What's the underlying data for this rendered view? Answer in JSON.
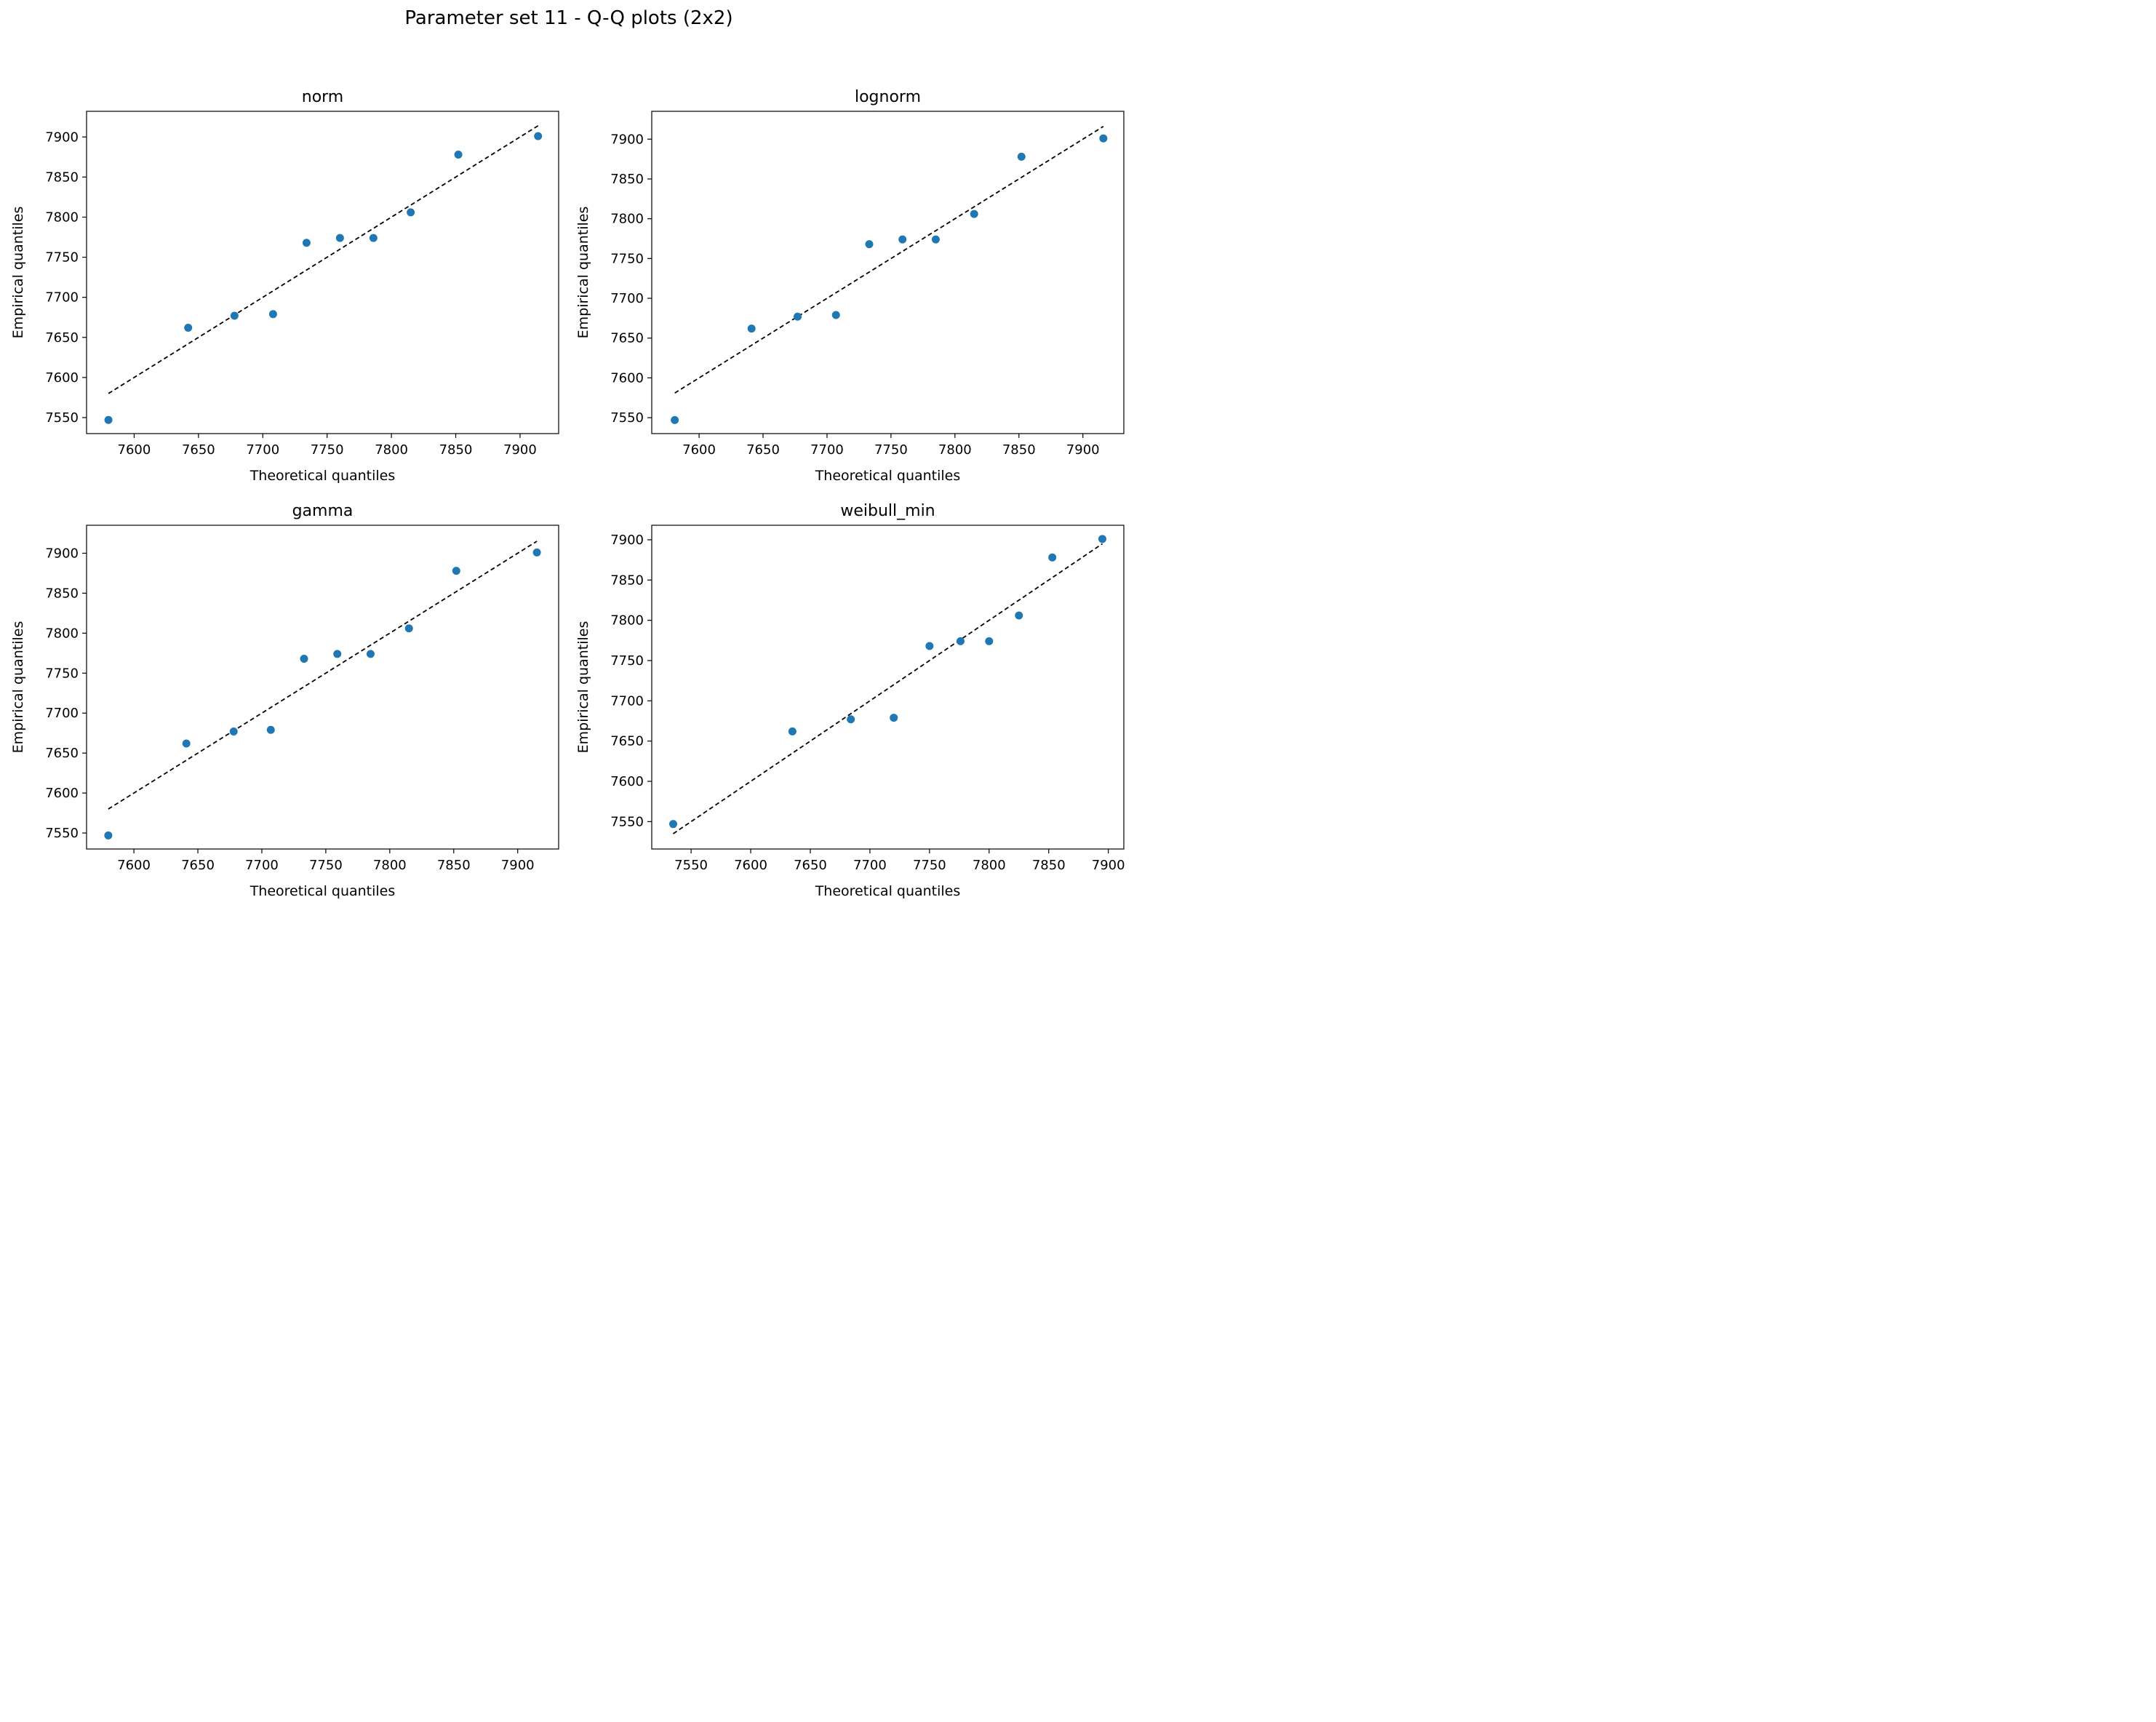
{
  "suptitle": "Parameter set 11 - Q-Q plots (2x2)",
  "chart_data": [
    {
      "type": "scatter",
      "title": "norm",
      "xlabel": "Theoretical quantiles",
      "ylabel": "Empirical quantiles",
      "xlim": [
        7563,
        7930
      ],
      "ylim": [
        7530,
        7932
      ],
      "xticks": [
        7600,
        7650,
        7700,
        7750,
        7800,
        7850,
        7900
      ],
      "yticks": [
        7550,
        7600,
        7650,
        7700,
        7750,
        7800,
        7850,
        7900
      ],
      "x": [
        7580,
        7642,
        7678,
        7708,
        7734,
        7760,
        7786,
        7815,
        7852,
        7914
      ],
      "y": [
        7547,
        7662,
        7677,
        7679,
        7768,
        7774,
        7774,
        7806,
        7878,
        7901
      ],
      "reference_line": {
        "x": [
          7580,
          7914
        ],
        "y": [
          7580,
          7914
        ]
      },
      "marker_color": "#1f77b4",
      "line_color": "#000000",
      "grid": false
    },
    {
      "type": "scatter",
      "title": "lognorm",
      "xlabel": "Theoretical quantiles",
      "ylabel": "Empirical quantiles",
      "xlim": [
        7563,
        7932
      ],
      "ylim": [
        7530,
        7935
      ],
      "xticks": [
        7600,
        7650,
        7700,
        7750,
        7800,
        7850,
        7900
      ],
      "yticks": [
        7550,
        7600,
        7650,
        7700,
        7750,
        7800,
        7850,
        7900
      ],
      "x": [
        7581,
        7641,
        7677,
        7707,
        7733,
        7759,
        7785,
        7815,
        7852,
        7916
      ],
      "y": [
        7547,
        7662,
        7677,
        7679,
        7768,
        7774,
        7774,
        7806,
        7878,
        7901
      ],
      "reference_line": {
        "x": [
          7581,
          7916
        ],
        "y": [
          7581,
          7916
        ]
      },
      "marker_color": "#1f77b4",
      "line_color": "#000000",
      "grid": false
    },
    {
      "type": "scatter",
      "title": "gamma",
      "xlabel": "Theoretical quantiles",
      "ylabel": "Empirical quantiles",
      "xlim": [
        7563,
        7932
      ],
      "ylim": [
        7530,
        7935
      ],
      "xticks": [
        7600,
        7650,
        7700,
        7750,
        7800,
        7850,
        7900
      ],
      "yticks": [
        7550,
        7600,
        7650,
        7700,
        7750,
        7800,
        7850,
        7900
      ],
      "x": [
        7580,
        7641,
        7678,
        7707,
        7733,
        7759,
        7785,
        7815,
        7852,
        7915
      ],
      "y": [
        7547,
        7662,
        7677,
        7679,
        7768,
        7774,
        7774,
        7806,
        7878,
        7901
      ],
      "reference_line": {
        "x": [
          7580,
          7915
        ],
        "y": [
          7580,
          7915
        ]
      },
      "marker_color": "#1f77b4",
      "line_color": "#000000",
      "grid": false
    },
    {
      "type": "scatter",
      "title": "weibull_min",
      "xlabel": "Theoretical quantiles",
      "ylabel": "Empirical quantiles",
      "xlim": [
        7517,
        7913
      ],
      "ylim": [
        7516,
        7918
      ],
      "xticks": [
        7550,
        7600,
        7650,
        7700,
        7750,
        7800,
        7850,
        7900
      ],
      "yticks": [
        7550,
        7600,
        7650,
        7700,
        7750,
        7800,
        7850,
        7900
      ],
      "x": [
        7535,
        7635,
        7684,
        7720,
        7750,
        7776,
        7800,
        7825,
        7853,
        7895
      ],
      "y": [
        7547,
        7662,
        7677,
        7679,
        7768,
        7774,
        7774,
        7806,
        7878,
        7901
      ],
      "reference_line": {
        "x": [
          7535,
          7895
        ],
        "y": [
          7535,
          7895
        ]
      },
      "marker_color": "#1f77b4",
      "line_color": "#000000",
      "grid": false
    }
  ]
}
